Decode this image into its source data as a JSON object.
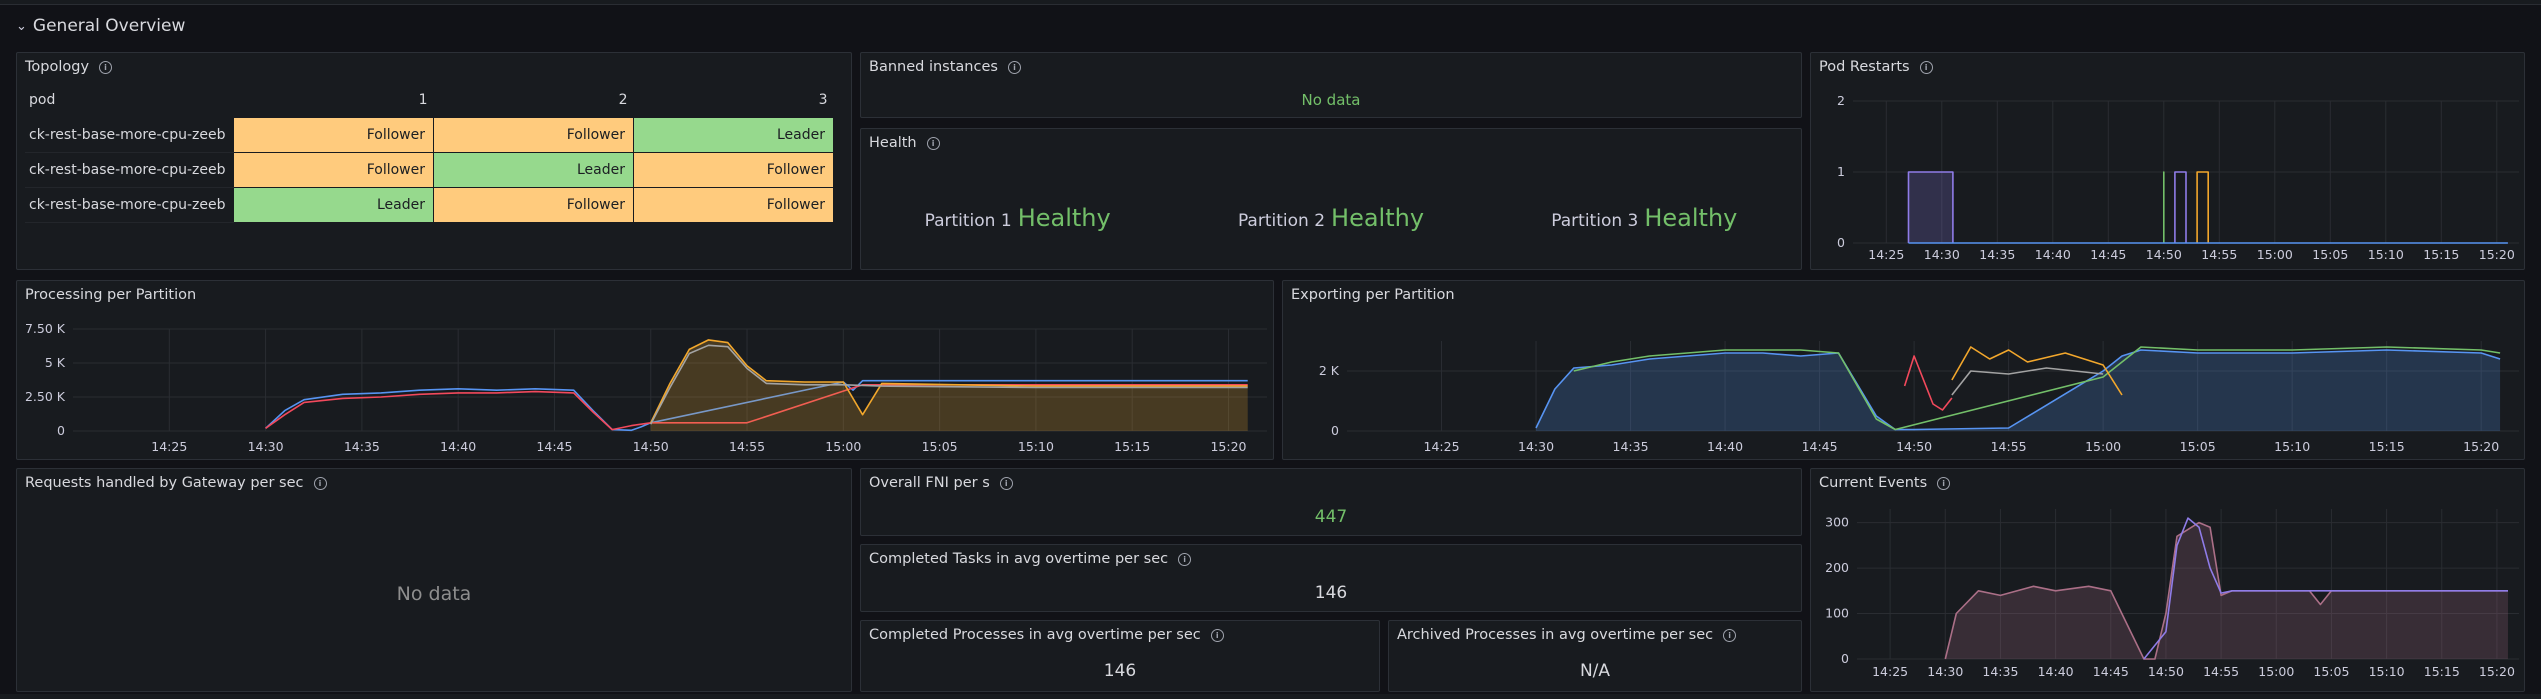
{
  "row": {
    "title": "General Overview"
  },
  "topology": {
    "title": "Topology",
    "headers": [
      "pod",
      "1",
      "2",
      "3"
    ],
    "rows": [
      {
        "pod": "ck-rest-base-more-cpu-zeeb",
        "cells": [
          "Follower",
          "Follower",
          "Leader"
        ]
      },
      {
        "pod": "ck-rest-base-more-cpu-zeeb",
        "cells": [
          "Follower",
          "Leader",
          "Follower"
        ]
      },
      {
        "pod": "ck-rest-base-more-cpu-zeeb",
        "cells": [
          "Leader",
          "Follower",
          "Follower"
        ]
      }
    ]
  },
  "banned": {
    "title": "Banned instances",
    "value": "No data"
  },
  "health": {
    "title": "Health",
    "partitions": [
      {
        "label": "Partition 1",
        "status": "Healthy"
      },
      {
        "label": "Partition 2",
        "status": "Healthy"
      },
      {
        "label": "Partition 3",
        "status": "Healthy"
      }
    ]
  },
  "pod_restarts": {
    "title": "Pod Restarts"
  },
  "processing": {
    "title": "Processing per Partition"
  },
  "exporting": {
    "title": "Exporting per Partition"
  },
  "requests": {
    "title": "Requests handled by Gateway per sec",
    "value": "No data"
  },
  "fni": {
    "title": "Overall FNI per s",
    "value": "447"
  },
  "tasks": {
    "title": "Completed Tasks in avg overtime per sec",
    "value": "146"
  },
  "processes": {
    "title": "Completed Processes in avg overtime per sec",
    "value": "146"
  },
  "archived": {
    "title": "Archived Processes in avg overtime per sec",
    "value": "N/A"
  },
  "events": {
    "title": "Current Events"
  },
  "colors": {
    "green": "#73bf69",
    "yellow": "#f2a72c",
    "blue": "#5794f2",
    "purple": "#8f7ce8",
    "red": "#f2495c",
    "follower": "#ffcb7d",
    "leader": "#96d98d"
  },
  "chart_data": [
    {
      "id": "pod_restarts",
      "type": "line",
      "title": "Pod Restarts",
      "x_ticks": [
        "14:25",
        "14:30",
        "14:35",
        "14:40",
        "14:45",
        "14:50",
        "14:55",
        "15:00",
        "15:05",
        "15:10",
        "15:15",
        "15:20"
      ],
      "y_ticks": [
        "0",
        "1",
        "2"
      ],
      "ylim": [
        0,
        2
      ],
      "series": [
        {
          "color": "#8f7ce8",
          "x": [
            "14:27",
            "14:27",
            "14:31",
            "14:31"
          ],
          "y": [
            0,
            1,
            1,
            0
          ],
          "fill": true
        },
        {
          "color": "#73bf69",
          "x": [
            "14:50",
            "14:50",
            "14:50",
            "14:50"
          ],
          "y": [
            0,
            1,
            1,
            0
          ]
        },
        {
          "color": "#8f7ce8",
          "x": [
            "14:51",
            "14:51",
            "14:52",
            "14:52"
          ],
          "y": [
            0,
            1,
            1,
            0
          ]
        },
        {
          "color": "#f2a72c",
          "x": [
            "14:53",
            "14:53",
            "14:54",
            "14:54"
          ],
          "y": [
            0,
            1,
            1,
            0
          ]
        },
        {
          "color": "#5794f2",
          "x": [
            "14:27",
            "15:21"
          ],
          "y": [
            0,
            0
          ]
        }
      ]
    },
    {
      "id": "processing",
      "type": "area",
      "title": "Processing per Partition",
      "x_ticks": [
        "14:25",
        "14:30",
        "14:35",
        "14:40",
        "14:45",
        "14:50",
        "14:55",
        "15:00",
        "15:05",
        "15:10",
        "15:15",
        "15:20"
      ],
      "y_ticks": [
        "0",
        "2.50 K",
        "5 K",
        "7.50 K"
      ],
      "ylim": [
        0,
        7500
      ],
      "series": [
        {
          "color": "#5794f2",
          "x": [
            "14:30",
            "14:31",
            "14:32",
            "14:34",
            "14:36",
            "14:38",
            "14:40",
            "14:42",
            "14:44",
            "14:46",
            "14:47",
            "14:48",
            "14:49",
            "14:49.5",
            "14:50",
            "15:00",
            "15:00.5",
            "15:01",
            "15:10",
            "15:21"
          ],
          "y": [
            200,
            1500,
            2300,
            2700,
            2800,
            3000,
            3100,
            3000,
            3100,
            3000,
            1500,
            100,
            50,
            300,
            600,
            3600,
            3000,
            3700,
            3700,
            3700
          ]
        },
        {
          "color": "#f2495c",
          "x": [
            "14:30",
            "14:31",
            "14:32",
            "14:34",
            "14:36",
            "14:38",
            "14:40",
            "14:42",
            "14:44",
            "14:46",
            "14:47",
            "14:48",
            "14:49",
            "14:50",
            "14:55",
            "15:01",
            "15:10",
            "15:21"
          ],
          "y": [
            200,
            1200,
            2100,
            2400,
            2500,
            2700,
            2800,
            2800,
            2900,
            2800,
            1400,
            100,
            400,
            600,
            600,
            3400,
            3400,
            3400
          ]
        },
        {
          "color": "#f2a72c",
          "x": [
            "14:50",
            "14:51",
            "14:52",
            "14:53",
            "14:54",
            "14:55",
            "14:56",
            "14:58",
            "15:00",
            "15:01",
            "15:02",
            "15:10",
            "15:21"
          ],
          "y": [
            600,
            3500,
            6000,
            6700,
            6500,
            4800,
            3700,
            3600,
            3600,
            1200,
            3500,
            3300,
            3300
          ],
          "fill": true
        },
        {
          "color": "#a3a3a3",
          "x": [
            "14:50",
            "14:51",
            "14:52",
            "14:53",
            "14:54",
            "14:55",
            "14:56",
            "14:58",
            "15:00",
            "15:02",
            "15:10",
            "15:21"
          ],
          "y": [
            500,
            3200,
            5700,
            6300,
            6200,
            4600,
            3500,
            3400,
            3400,
            3300,
            3200,
            3200
          ]
        }
      ]
    },
    {
      "id": "exporting",
      "type": "area",
      "title": "Exporting per Partition",
      "x_ticks": [
        "14:25",
        "14:30",
        "14:35",
        "14:40",
        "14:45",
        "14:50",
        "14:55",
        "15:00",
        "15:05",
        "15:10",
        "15:15",
        "15:20"
      ],
      "y_ticks": [
        "0",
        "2 K"
      ],
      "ylim": [
        0,
        3000
      ],
      "series": [
        {
          "color": "#5794f2",
          "x": [
            "14:30",
            "14:31",
            "14:32",
            "14:34",
            "14:36",
            "14:38",
            "14:40",
            "14:42",
            "14:44",
            "14:46",
            "14:48",
            "14:49",
            "14:50",
            "14:55",
            "15:00",
            "15:01",
            "15:02",
            "15:05",
            "15:10",
            "15:15",
            "15:20",
            "15:21"
          ],
          "y": [
            100,
            1400,
            2100,
            2200,
            2400,
            2500,
            2600,
            2600,
            2500,
            2600,
            500,
            50,
            50,
            100,
            2000,
            2500,
            2700,
            2600,
            2600,
            2700,
            2600,
            2400
          ],
          "fill": true
        },
        {
          "color": "#73bf69",
          "x": [
            "14:32",
            "14:34",
            "14:36",
            "14:38",
            "14:40",
            "14:42",
            "14:44",
            "14:46",
            "14:48",
            "14:49",
            "15:00",
            "15:02",
            "15:05",
            "15:10",
            "15:15",
            "15:20",
            "15:21"
          ],
          "y": [
            2000,
            2300,
            2500,
            2600,
            2700,
            2700,
            2700,
            2600,
            400,
            50,
            1800,
            2800,
            2700,
            2700,
            2800,
            2700,
            2600
          ]
        },
        {
          "color": "#f2495c",
          "x": [
            "14:49.5",
            "14:50",
            "14:51",
            "14:51.5",
            "14:52"
          ],
          "y": [
            1500,
            2500,
            900,
            700,
            1100
          ]
        },
        {
          "color": "#f2a72c",
          "x": [
            "14:52",
            "14:53",
            "14:54",
            "14:55",
            "14:56",
            "14:58",
            "15:00",
            "15:01"
          ],
          "y": [
            1700,
            2800,
            2400,
            2700,
            2300,
            2600,
            2200,
            1200
          ]
        },
        {
          "color": "#a3a3a3",
          "x": [
            "14:52",
            "14:53",
            "14:55",
            "14:57",
            "15:00"
          ],
          "y": [
            1200,
            2000,
            1900,
            2100,
            1900
          ]
        }
      ]
    },
    {
      "id": "events",
      "type": "area",
      "title": "Current Events",
      "x_ticks": [
        "14:25",
        "14:30",
        "14:35",
        "14:40",
        "14:45",
        "14:50",
        "14:55",
        "15:00",
        "15:05",
        "15:10",
        "15:15",
        "15:20"
      ],
      "y_ticks": [
        "0",
        "100",
        "200",
        "300"
      ],
      "ylim": [
        0,
        330
      ],
      "series": [
        {
          "color": "#ab6f87",
          "x": [
            "14:30",
            "14:31",
            "14:33",
            "14:35",
            "14:38",
            "14:40",
            "14:43",
            "14:45",
            "14:46",
            "14:48",
            "14:49",
            "14:50",
            "14:51",
            "14:53",
            "14:54",
            "14:55",
            "14:56",
            "15:00",
            "15:03",
            "15:04",
            "15:05",
            "15:10",
            "15:15",
            "15:20",
            "15:21"
          ],
          "y": [
            0,
            100,
            150,
            140,
            160,
            150,
            160,
            150,
            100,
            0,
            0,
            100,
            270,
            300,
            290,
            140,
            150,
            150,
            150,
            120,
            150,
            150,
            150,
            150,
            150
          ],
          "fill": true
        },
        {
          "color": "#8f7ce8",
          "x": [
            "14:48",
            "14:50",
            "14:51",
            "14:52",
            "14:53",
            "14:54",
            "14:55",
            "14:56",
            "15:00",
            "15:05",
            "15:10",
            "15:21"
          ],
          "y": [
            0,
            60,
            250,
            310,
            290,
            200,
            145,
            150,
            150,
            150,
            150,
            150
          ]
        }
      ]
    }
  ]
}
